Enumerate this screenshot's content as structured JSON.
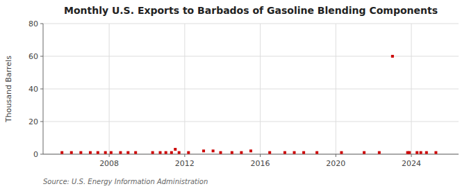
{
  "chart_data": {
    "type": "scatter",
    "title": "Monthly U.S. Exports to Barbados of Gasoline Blending Components",
    "ylabel": "Thousand Barrels",
    "source": "Source: U.S. Energy Information Administration",
    "color": "#cc0000",
    "marker": "square",
    "grid": true,
    "xlim": [
      2004.5,
      2026.5
    ],
    "xticks": [
      2008,
      2012,
      2016,
      2020,
      2024
    ],
    "ylim": [
      0,
      80
    ],
    "yticks": [
      0,
      20,
      40,
      60,
      80
    ],
    "x": [
      2005.5,
      2006.0,
      2006.5,
      2007.0,
      2007.4,
      2007.8,
      2008.1,
      2008.6,
      2009.0,
      2009.4,
      2010.3,
      2010.7,
      2011.0,
      2011.3,
      2011.5,
      2011.7,
      2012.2,
      2013.0,
      2013.5,
      2013.9,
      2014.5,
      2015.0,
      2015.5,
      2016.5,
      2017.3,
      2017.8,
      2018.3,
      2019.0,
      2020.3,
      2021.5,
      2022.3,
      2023.0,
      2023.8,
      2023.9,
      2024.3,
      2024.5,
      2024.8,
      2025.3
    ],
    "values": [
      1,
      1,
      1,
      1,
      1,
      1,
      1,
      1,
      1,
      1,
      1,
      1,
      1,
      1,
      3,
      1,
      1,
      2,
      2,
      1,
      1,
      1,
      2,
      1,
      1,
      1,
      1,
      1,
      1,
      1,
      1,
      60,
      1,
      1,
      1,
      1,
      1,
      1
    ]
  }
}
